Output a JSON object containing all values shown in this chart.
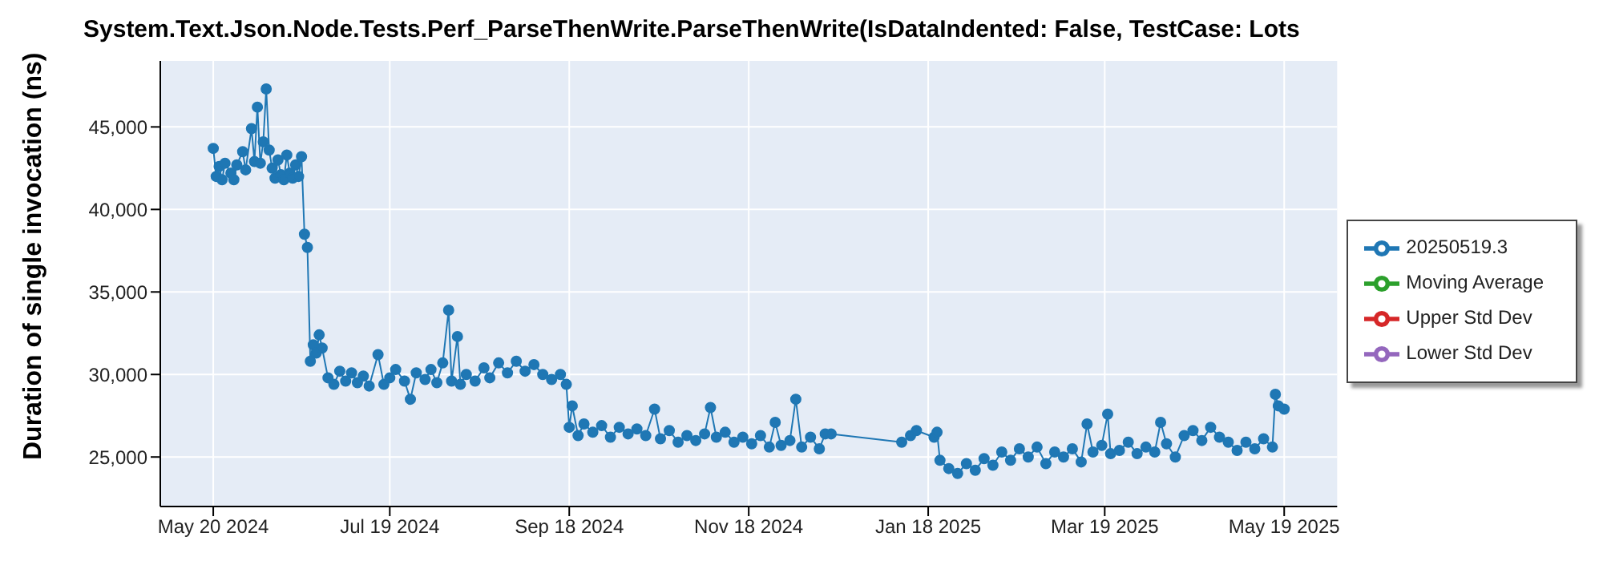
{
  "chart_data": {
    "type": "line",
    "title": "System.Text.Json.Node.Tests.Perf_ParseThenWrite.ParseThenWrite(IsDataIndented: False, TestCase: Lots",
    "ylabel": "Duration of single invocation (ns)",
    "x": [
      "2024-05-20",
      "2024-05-21",
      "2024-05-22",
      "2024-05-23",
      "2024-05-24",
      "2024-05-26",
      "2024-05-27",
      "2024-05-28",
      "2024-05-30",
      "2024-05-31",
      "2024-06-02",
      "2024-06-03",
      "2024-06-04",
      "2024-06-05",
      "2024-06-06",
      "2024-06-07",
      "2024-06-08",
      "2024-06-09",
      "2024-06-10",
      "2024-06-11",
      "2024-06-12",
      "2024-06-13",
      "2024-06-14",
      "2024-06-15",
      "2024-06-16",
      "2024-06-17",
      "2024-06-18",
      "2024-06-19",
      "2024-06-20",
      "2024-06-21",
      "2024-06-22",
      "2024-06-23",
      "2024-06-24",
      "2024-06-25",
      "2024-06-26",
      "2024-06-28",
      "2024-06-30",
      "2024-07-02",
      "2024-07-04",
      "2024-07-06",
      "2024-07-08",
      "2024-07-10",
      "2024-07-12",
      "2024-07-15",
      "2024-07-17",
      "2024-07-19",
      "2024-07-21",
      "2024-07-24",
      "2024-07-26",
      "2024-07-28",
      "2024-07-31",
      "2024-08-02",
      "2024-08-04",
      "2024-08-06",
      "2024-08-08",
      "2024-08-09",
      "2024-08-11",
      "2024-08-12",
      "2024-08-14",
      "2024-08-17",
      "2024-08-20",
      "2024-08-22",
      "2024-08-25",
      "2024-08-28",
      "2024-08-31",
      "2024-09-03",
      "2024-09-06",
      "2024-09-09",
      "2024-09-12",
      "2024-09-15",
      "2024-09-17",
      "2024-09-18",
      "2024-09-19",
      "2024-09-21",
      "2024-09-23",
      "2024-09-26",
      "2024-09-29",
      "2024-10-02",
      "2024-10-05",
      "2024-10-08",
      "2024-10-11",
      "2024-10-14",
      "2024-10-17",
      "2024-10-19",
      "2024-10-22",
      "2024-10-25",
      "2024-10-28",
      "2024-10-31",
      "2024-11-03",
      "2024-11-05",
      "2024-11-07",
      "2024-11-10",
      "2024-11-13",
      "2024-11-16",
      "2024-11-19",
      "2024-11-22",
      "2024-11-25",
      "2024-11-27",
      "2024-11-29",
      "2024-12-02",
      "2024-12-04",
      "2024-12-06",
      "2024-12-09",
      "2024-12-12",
      "2024-12-14",
      "2024-12-16",
      "2025-01-09",
      "2025-01-12",
      "2025-01-14",
      "2025-01-20",
      "2025-01-21",
      "2025-01-22",
      "2025-01-25",
      "2025-01-28",
      "2025-01-31",
      "2025-02-03",
      "2025-02-06",
      "2025-02-09",
      "2025-02-12",
      "2025-02-15",
      "2025-02-18",
      "2025-02-21",
      "2025-02-24",
      "2025-02-27",
      "2025-03-02",
      "2025-03-05",
      "2025-03-08",
      "2025-03-11",
      "2025-03-13",
      "2025-03-15",
      "2025-03-18",
      "2025-03-20",
      "2025-03-21",
      "2025-03-24",
      "2025-03-27",
      "2025-03-30",
      "2025-04-02",
      "2025-04-05",
      "2025-04-07",
      "2025-04-09",
      "2025-04-12",
      "2025-04-15",
      "2025-04-18",
      "2025-04-21",
      "2025-04-24",
      "2025-04-27",
      "2025-04-30",
      "2025-05-03",
      "2025-05-06",
      "2025-05-09",
      "2025-05-12",
      "2025-05-15",
      "2025-05-16",
      "2025-05-17",
      "2025-05-19"
    ],
    "series": [
      {
        "name": "20250519.3",
        "color": "#1f77b4",
        "values": [
          43700,
          42000,
          42600,
          41800,
          42800,
          42200,
          41800,
          42700,
          43500,
          42400,
          44900,
          42900,
          46200,
          42800,
          44100,
          47300,
          43600,
          42500,
          41900,
          43000,
          42100,
          41800,
          43300,
          42200,
          41900,
          42700,
          42000,
          43200,
          38500,
          37700,
          30800,
          31800,
          31300,
          32400,
          31600,
          29800,
          29400,
          30200,
          29600,
          30100,
          29500,
          29900,
          29300,
          31200,
          29400,
          29800,
          30300,
          29600,
          28500,
          30100,
          29700,
          30300,
          29500,
          30700,
          33900,
          29600,
          32300,
          29400,
          30000,
          29600,
          30400,
          29800,
          30700,
          30100,
          30800,
          30200,
          30600,
          30000,
          29700,
          30000,
          29400,
          26800,
          28100,
          26300,
          27000,
          26500,
          26900,
          26200,
          26800,
          26400,
          26700,
          26300,
          27900,
          26100,
          26600,
          25900,
          26300,
          26000,
          26400,
          28000,
          26200,
          26500,
          25900,
          26200,
          25800,
          26300,
          25600,
          27100,
          25700,
          26000,
          28500,
          25600,
          26200,
          25500,
          26400,
          26400,
          25900,
          26300,
          26600,
          26200,
          26500,
          24800,
          24300,
          24000,
          24600,
          24200,
          24900,
          24500,
          25300,
          24800,
          25500,
          25000,
          25600,
          24600,
          25300,
          25000,
          25500,
          24700,
          27000,
          25300,
          25700,
          27600,
          25200,
          25400,
          25900,
          25200,
          25600,
          25300,
          27100,
          25800,
          25000,
          26300,
          26600,
          26000,
          26800,
          26200,
          25900,
          25400,
          25900,
          25500,
          26100,
          25600,
          28800,
          28100,
          27900
        ]
      },
      {
        "name": "Moving Average",
        "color": "#2ca02c",
        "values": [
          null,
          null,
          null,
          null,
          null,
          null,
          null,
          null,
          null,
          null,
          null,
          null,
          null,
          null,
          null,
          null,
          null,
          null,
          null,
          null,
          null,
          null,
          null,
          null,
          null,
          null,
          null,
          null,
          null,
          null,
          null,
          null,
          null,
          null,
          null,
          null,
          null,
          null,
          null,
          null,
          null,
          null,
          null,
          null,
          null,
          null,
          null,
          null,
          null,
          null,
          null,
          null,
          null,
          null,
          null,
          null,
          null,
          null,
          null,
          null,
          null,
          null,
          null,
          null,
          null,
          null,
          null,
          null,
          null,
          null,
          null,
          null,
          null,
          null,
          null,
          null,
          null,
          null,
          null,
          null,
          null,
          null,
          null,
          null,
          null,
          null,
          null,
          null,
          null,
          null,
          null,
          null,
          null,
          null,
          null,
          null,
          null,
          null,
          null,
          null,
          null,
          null,
          null,
          null,
          null,
          null,
          null,
          null,
          null,
          null,
          null,
          null,
          null,
          null,
          null,
          null,
          null,
          null,
          null,
          null,
          null,
          null,
          null,
          null,
          null,
          null,
          null,
          null,
          null,
          null,
          null,
          null,
          null,
          null,
          null,
          null,
          null,
          null,
          null,
          null,
          null,
          null,
          null,
          null,
          null,
          null,
          null,
          null,
          null,
          null,
          null,
          null,
          null,
          null,
          null
        ]
      },
      {
        "name": "Upper Std Dev",
        "color": "#d62728",
        "values": [
          null,
          null,
          null,
          null,
          null,
          null,
          null,
          null,
          null,
          null,
          null,
          null,
          null,
          null,
          null,
          null,
          null,
          null,
          null,
          null,
          null,
          null,
          null,
          null,
          null,
          null,
          null,
          null,
          null,
          null,
          null,
          null,
          null,
          null,
          null,
          null,
          null,
          null,
          null,
          null,
          null,
          null,
          null,
          null,
          null,
          null,
          null,
          null,
          null,
          null,
          null,
          null,
          null,
          null,
          null,
          null,
          null,
          null,
          null,
          null,
          null,
          null,
          null,
          null,
          null,
          null,
          null,
          null,
          null,
          null,
          null,
          null,
          null,
          null,
          null,
          null,
          null,
          null,
          null,
          null,
          null,
          null,
          null,
          null,
          null,
          null,
          null,
          null,
          null,
          null,
          null,
          null,
          null,
          null,
          null,
          null,
          null,
          null,
          null,
          null,
          null,
          null,
          null,
          null,
          null,
          null,
          null,
          null,
          null,
          null,
          null,
          null,
          null,
          null,
          null,
          null,
          null,
          null,
          null,
          null,
          null,
          null,
          null,
          null,
          null,
          null,
          null,
          null,
          null,
          null,
          null,
          null,
          null,
          null,
          null,
          null,
          null,
          null,
          null,
          null,
          null,
          null,
          null,
          null,
          null,
          null,
          null,
          null,
          null,
          null,
          null,
          null,
          null,
          null,
          null
        ]
      },
      {
        "name": "Lower Std Dev",
        "color": "#9467bd",
        "values": [
          null,
          null,
          null,
          null,
          null,
          null,
          null,
          null,
          null,
          null,
          null,
          null,
          null,
          null,
          null,
          null,
          null,
          null,
          null,
          null,
          null,
          null,
          null,
          null,
          null,
          null,
          null,
          null,
          null,
          null,
          null,
          null,
          null,
          null,
          null,
          null,
          null,
          null,
          null,
          null,
          null,
          null,
          null,
          null,
          null,
          null,
          null,
          null,
          null,
          null,
          null,
          null,
          null,
          null,
          null,
          null,
          null,
          null,
          null,
          null,
          null,
          null,
          null,
          null,
          null,
          null,
          null,
          null,
          null,
          null,
          null,
          null,
          null,
          null,
          null,
          null,
          null,
          null,
          null,
          null,
          null,
          null,
          null,
          null,
          null,
          null,
          null,
          null,
          null,
          null,
          null,
          null,
          null,
          null,
          null,
          null,
          null,
          null,
          null,
          null,
          null,
          null,
          null,
          null,
          null,
          null,
          null,
          null,
          null,
          null,
          null,
          null,
          null,
          null,
          null,
          null,
          null,
          null,
          null,
          null,
          null,
          null,
          null,
          null,
          null,
          null,
          null,
          null,
          null,
          null,
          null,
          null,
          null,
          null,
          null,
          null,
          null,
          null,
          null,
          null,
          null,
          null,
          null,
          null,
          null,
          null,
          null,
          null,
          null,
          null,
          null,
          null,
          null,
          null,
          null
        ]
      }
    ],
    "xlim": [
      "2024-05-02",
      "2025-06-06"
    ],
    "xticks": [
      {
        "value": "2024-05-20",
        "label": "May 20 2024"
      },
      {
        "value": "2024-07-19",
        "label": "Jul 19 2024"
      },
      {
        "value": "2024-09-18",
        "label": "Sep 18 2024"
      },
      {
        "value": "2024-11-18",
        "label": "Nov 18 2024"
      },
      {
        "value": "2025-01-18",
        "label": "Jan 18 2025"
      },
      {
        "value": "2025-03-19",
        "label": "Mar 19 2025"
      },
      {
        "value": "2025-05-19",
        "label": "May 19 2025"
      }
    ],
    "ylim": [
      22000,
      49000
    ],
    "yticks": [
      {
        "value": 25000,
        "label": "25,000"
      },
      {
        "value": 30000,
        "label": "30,000"
      },
      {
        "value": 35000,
        "label": "35,000"
      },
      {
        "value": 40000,
        "label": "40,000"
      },
      {
        "value": 45000,
        "label": "45,000"
      }
    ],
    "grid": true,
    "legend": "right",
    "marker": "circle",
    "line_style": "solid"
  }
}
